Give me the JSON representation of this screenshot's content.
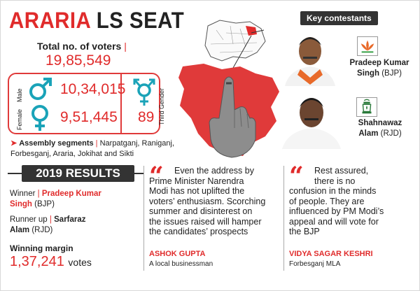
{
  "title": {
    "part1": "ARARIA",
    "part2": "LS SEAT"
  },
  "voters": {
    "label": "Total no. of voters",
    "separator": "|",
    "value": "19,85,549"
  },
  "gender": {
    "male_label": "Male",
    "male_value": "10,34,015",
    "female_label": "Female",
    "female_value": "9,51,445",
    "third_label": "Third Gender",
    "third_value": "89"
  },
  "segments": {
    "title": "Assembly segments",
    "separator": "|",
    "list": "Narpatganj, Raniganj, Forbesganj, Araria, Jokihat and Sikti"
  },
  "key_contestants": {
    "label": "Key contestants",
    "candidates": [
      {
        "name_line1": "Pradeep Kumar",
        "name_line2": "Singh",
        "party": "(BJP)",
        "symbol": "lotus-icon"
      },
      {
        "name_line1": "Shahnawaz",
        "name_line2": "Alam",
        "party": "(RJD)",
        "symbol": "lantern-icon"
      }
    ]
  },
  "results": {
    "label": "2019 RESULTS",
    "winner_label": "Winner",
    "winner_name_1": "Pradeep Kumar",
    "winner_name_2": "Singh",
    "winner_party": "(BJP)",
    "runner_label": "Runner up",
    "runner_name_1": "Sarfaraz",
    "runner_name_2": "Alam",
    "runner_party": "(RJD)",
    "margin_label": "Winning margin",
    "margin_value": "1,37,241",
    "margin_unit": "votes"
  },
  "quotes": [
    {
      "lines": [
        "Even the address by",
        "Prime Minister Narendra",
        "Modi has not uplifted the",
        "voters’ enthusiasm. Scorching",
        "summer and disinterest on",
        "the issues raised will hamper",
        "the candidates’ prospects"
      ],
      "author": "ASHOK GUPTA",
      "role": "A local businessman"
    },
    {
      "lines": [
        "Rest assured,",
        "there is no",
        "confusion in the minds",
        "of people. They are",
        "influenced by PM Modi’s",
        "appeal and will vote for",
        "the BJP"
      ],
      "author": "VIDYA SAGAR KESHRI",
      "role": "Forbesganj MLA"
    }
  ],
  "colors": {
    "accent": "#e02b2b",
    "dark": "#333333"
  }
}
